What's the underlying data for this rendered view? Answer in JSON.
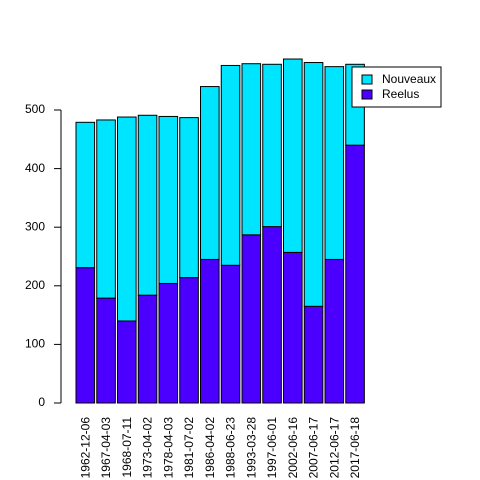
{
  "chart_data": {
    "type": "bar",
    "stacked": true,
    "title": "",
    "xlabel": "",
    "ylabel": "",
    "categories": [
      "1962-12-06",
      "1967-04-03",
      "1968-07-11",
      "1973-04-02",
      "1978-04-03",
      "1981-07-02",
      "1986-04-02",
      "1988-06-23",
      "1993-03-28",
      "1997-06-01",
      "2002-06-16",
      "2007-06-17",
      "2012-06-17",
      "2017-06-18"
    ],
    "series": [
      {
        "name": "Reelus",
        "color": "#4B00FF",
        "values": [
          231,
          179,
          140,
          184,
          204,
          214,
          245,
          235,
          287,
          301,
          257,
          165,
          245,
          440
        ]
      },
      {
        "name": "Nouveaux",
        "color": "#00E5FF",
        "values": [
          248,
          304,
          348,
          307,
          285,
          273,
          295,
          341,
          292,
          277,
          330,
          416,
          329,
          138
        ]
      }
    ],
    "ylim": [
      0,
      577
    ],
    "yticks": [
      "0",
      "100",
      "200",
      "300",
      "400",
      "500"
    ],
    "grid": false,
    "legend": {
      "placement": "top-right",
      "entries": [
        {
          "label": "Nouveaux",
          "color": "#00E5FF"
        },
        {
          "label": "Reelus",
          "color": "#4B00FF"
        }
      ]
    }
  }
}
